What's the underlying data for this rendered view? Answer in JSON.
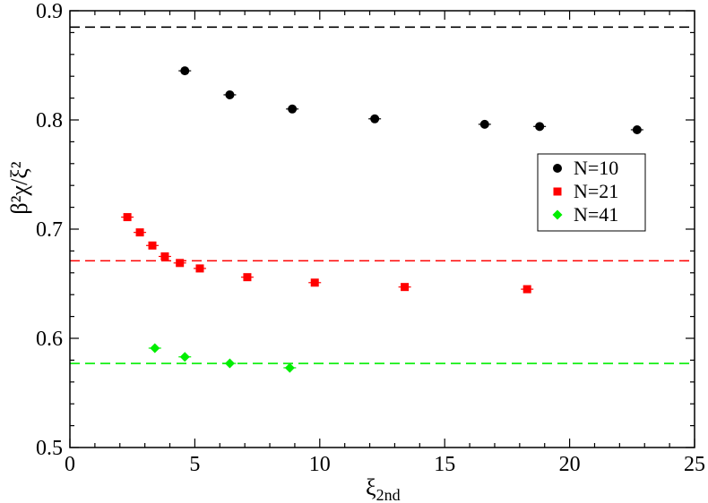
{
  "chart_data": {
    "type": "scatter",
    "x_axis": {
      "label_main": "ξ",
      "label_sub": "2nd",
      "lim": [
        0,
        25
      ],
      "ticks": [
        0,
        5,
        10,
        15,
        20,
        25
      ],
      "tick_labels": [
        "0",
        "5",
        "10",
        "15",
        "20",
        "25"
      ],
      "minor_step": 1
    },
    "y_axis": {
      "label_text": "β²χ/ξ²",
      "lim": [
        0.5,
        0.9
      ],
      "ticks": [
        0.5,
        0.6,
        0.7,
        0.8,
        0.9
      ],
      "tick_labels": [
        "0.5",
        "0.6",
        "0.7",
        "0.8",
        "0.9"
      ],
      "minor_step": 0.02
    },
    "grid": false,
    "legend_position": "right",
    "series": [
      {
        "name": "N=10",
        "marker": "circle",
        "color": "#000000",
        "points": [
          {
            "x": 4.6,
            "y": 0.845
          },
          {
            "x": 6.4,
            "y": 0.823
          },
          {
            "x": 8.9,
            "y": 0.81
          },
          {
            "x": 12.2,
            "y": 0.801
          },
          {
            "x": 16.6,
            "y": 0.796
          },
          {
            "x": 18.8,
            "y": 0.794
          },
          {
            "x": 22.7,
            "y": 0.791
          }
        ]
      },
      {
        "name": "N=21",
        "marker": "square",
        "color": "#ff0000",
        "points": [
          {
            "x": 2.3,
            "y": 0.711
          },
          {
            "x": 2.8,
            "y": 0.697
          },
          {
            "x": 3.3,
            "y": 0.685
          },
          {
            "x": 3.8,
            "y": 0.675
          },
          {
            "x": 4.4,
            "y": 0.669
          },
          {
            "x": 5.2,
            "y": 0.664
          },
          {
            "x": 7.1,
            "y": 0.656
          },
          {
            "x": 9.8,
            "y": 0.651
          },
          {
            "x": 13.4,
            "y": 0.647
          },
          {
            "x": 18.3,
            "y": 0.645
          }
        ]
      },
      {
        "name": "N=41",
        "marker": "diamond",
        "color": "#00ee00",
        "points": [
          {
            "x": 3.4,
            "y": 0.591
          },
          {
            "x": 4.6,
            "y": 0.583
          },
          {
            "x": 6.4,
            "y": 0.577
          },
          {
            "x": 8.8,
            "y": 0.573
          }
        ]
      }
    ],
    "reference_lines": [
      {
        "y": 0.885,
        "color": "#000000",
        "style": "dashed"
      },
      {
        "y": 0.671,
        "color": "#ff0000",
        "style": "dashed"
      },
      {
        "y": 0.577,
        "color": "#00ee00",
        "style": "dashed"
      }
    ]
  }
}
